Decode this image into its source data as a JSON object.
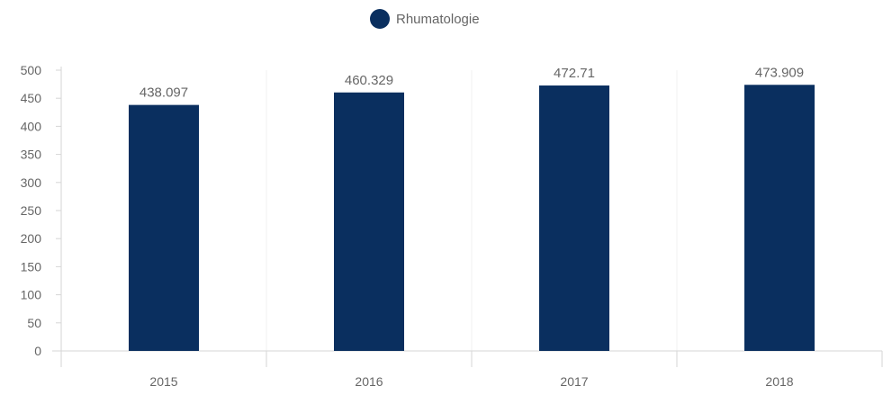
{
  "chart_data": {
    "type": "bar",
    "categories": [
      "2015",
      "2016",
      "2017",
      "2018"
    ],
    "series": [
      {
        "name": "Rhumatologie",
        "values": [
          438.097,
          460.329,
          472.71,
          473.909
        ],
        "value_labels": [
          "438.097",
          "460.329",
          "472.71",
          "473.909"
        ],
        "color": "#0a2f5f"
      }
    ],
    "title": "",
    "xlabel": "",
    "ylabel": "",
    "ylim": [
      0,
      500
    ],
    "yticks": [
      0,
      50,
      100,
      150,
      200,
      250,
      300,
      350,
      400,
      450,
      500
    ],
    "ytick_labels": [
      "0",
      "50",
      "100",
      "150",
      "200",
      "250",
      "300",
      "350",
      "400",
      "450",
      "500"
    ],
    "grid": "vertical-faint",
    "legend": "top-center"
  }
}
